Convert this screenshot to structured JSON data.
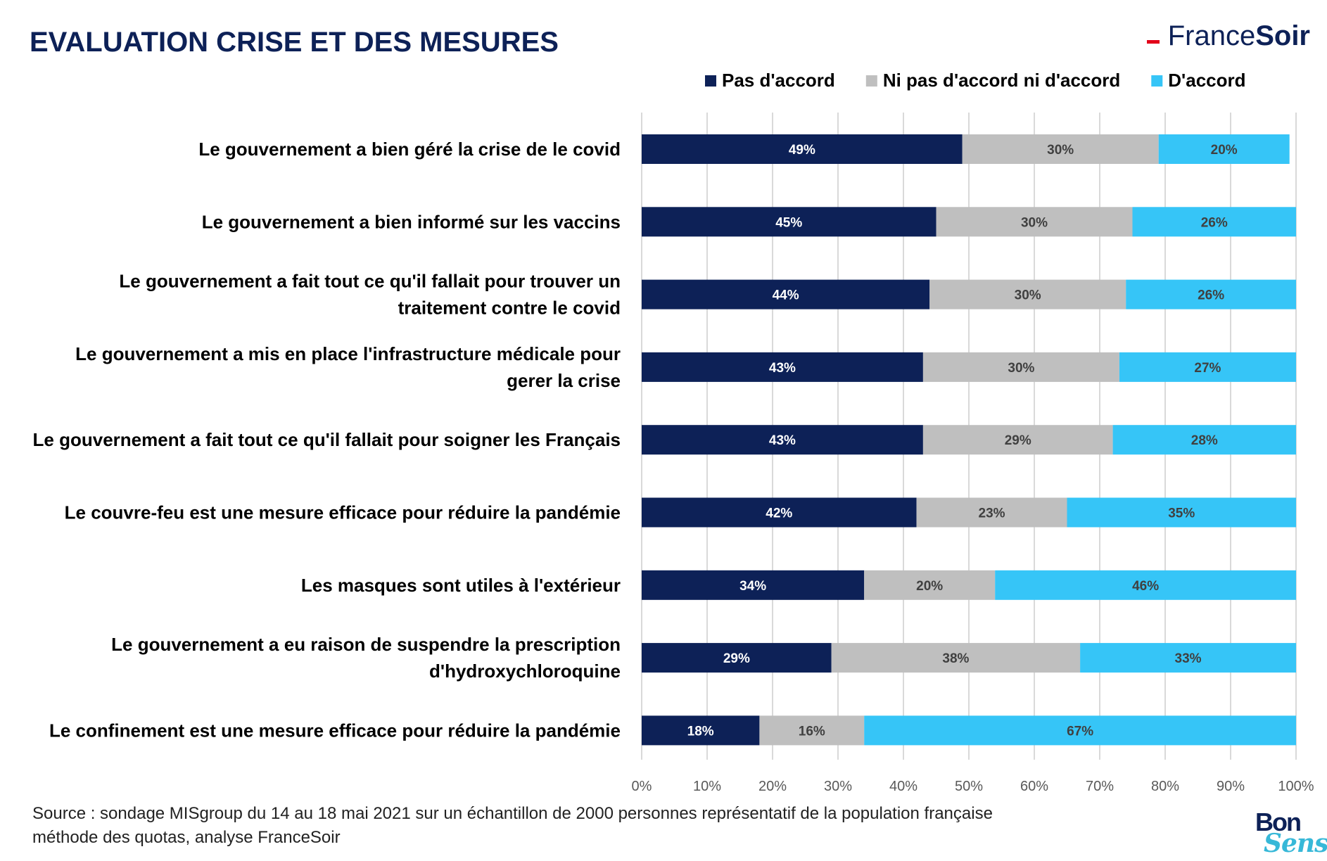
{
  "title": "EVALUATION CRISE ET DES MESURES",
  "logo": {
    "left_text": "France",
    "right_text": "Soir",
    "accent_color": "#e2001a"
  },
  "bon_sens_logo": {
    "top": "Bon",
    "bottom": "Sens"
  },
  "source": "Source : sondage MISgroup du 14 au 18 mai 2021 sur un échantillon de 2000 personnes représentatif de la population française méthode des quotas, analyse FranceSoir",
  "chart_data": {
    "type": "bar",
    "orientation": "horizontal",
    "stacked": true,
    "legend_position": "top-right",
    "grid": "vertical",
    "xlim": [
      0,
      100
    ],
    "x_ticks": [
      "0%",
      "10%",
      "20%",
      "30%",
      "40%",
      "50%",
      "60%",
      "70%",
      "80%",
      "90%",
      "100%"
    ],
    "categories": [
      [
        "Le gouvernement a bien géré la crise de le covid"
      ],
      [
        "Le gouvernement a bien informé sur les vaccins"
      ],
      [
        "Le gouvernement a fait tout ce qu'il fallait pour trouver un",
        "traitement contre le covid"
      ],
      [
        "Le gouvernement a mis en place l'infrastructure médicale pour",
        "gerer la crise"
      ],
      [
        "Le gouvernement a fait tout ce qu'il fallait pour soigner les Français"
      ],
      [
        "Le couvre-feu est une mesure efficace pour réduire la pandémie"
      ],
      [
        "Les masques sont utiles à l'extérieur"
      ],
      [
        "Le gouvernement a eu raison de suspendre la prescription",
        "d'hydroxychloroquine"
      ],
      [
        "Le confinement est une mesure efficace pour réduire la pandémie"
      ]
    ],
    "series": [
      {
        "name": "Pas d'accord",
        "color": "#0d2157",
        "label_color": "#ffffff",
        "values": [
          49,
          45,
          44,
          43,
          43,
          42,
          34,
          29,
          18
        ],
        "labels": [
          "49%",
          "45%",
          "44%",
          "43%",
          "43%",
          "42%",
          "34%",
          "29%",
          "18%"
        ]
      },
      {
        "name": "Ni pas d'accord ni d'accord",
        "color": "#bfbfbf",
        "label_color": "#404040",
        "values": [
          30,
          30,
          30,
          30,
          29,
          23,
          20,
          38,
          16
        ],
        "labels": [
          "30%",
          "30%",
          "30%",
          "30%",
          "29%",
          "23%",
          "20%",
          "38%",
          "16%"
        ]
      },
      {
        "name": "D'accord",
        "color": "#36c5f7",
        "label_color": "#404040",
        "values": [
          20,
          26,
          26,
          27,
          28,
          35,
          46,
          33,
          67
        ],
        "labels": [
          "20%",
          "26%",
          "26%",
          "27%",
          "28%",
          "35%",
          "46%",
          "33%",
          "67%"
        ]
      }
    ]
  }
}
